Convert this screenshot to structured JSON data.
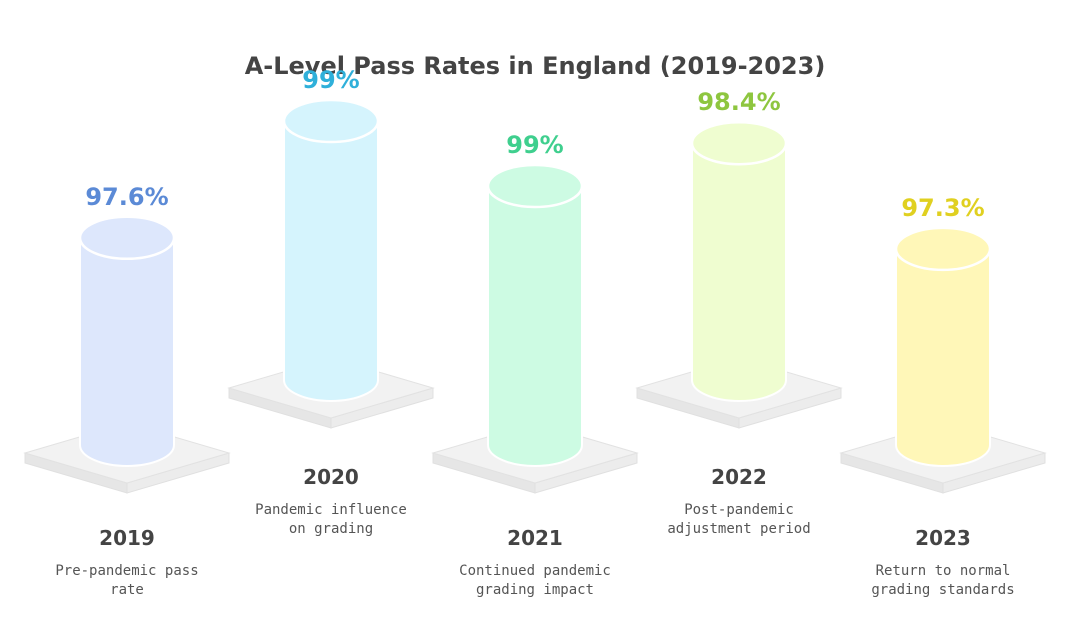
{
  "chart_data": {
    "type": "bar",
    "title": "A-Level Pass Rates in England (2019-2023)",
    "categories": [
      "2019",
      "2020",
      "2021",
      "2022",
      "2023"
    ],
    "values": [
      97.6,
      99,
      99,
      98.4,
      97.3
    ],
    "value_labels": [
      "97.6%",
      "99%",
      "99%",
      "98.4%",
      "97.3%"
    ],
    "descriptions": [
      "Pre-pandemic pass rate",
      "Pandemic influence on grading",
      "Continued pandemic grading impact",
      "Post-pandemic adjustment period",
      "Return to normal grading standards"
    ],
    "colors": {
      "label": [
        "#5b8ad6",
        "#2fb0da",
        "#3fcf8e",
        "#8ec63f",
        "#e0d020"
      ],
      "fill": [
        "#dde7fc",
        "#d5f4fd",
        "#cdfbe3",
        "#effdd0",
        "#fff7b8"
      ]
    }
  }
}
